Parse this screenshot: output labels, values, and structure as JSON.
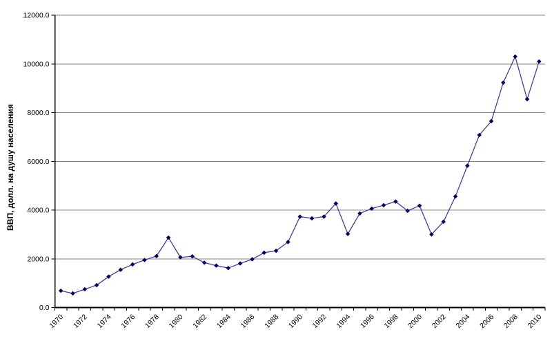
{
  "chart_data": {
    "type": "line",
    "title": "",
    "xlabel": "",
    "ylabel": "ВВП, долл. на душу населения",
    "legend": "none",
    "grid": "horizontal",
    "marker": "diamond",
    "ylim": [
      0,
      12000
    ],
    "y_ticks": [
      0,
      2000,
      4000,
      6000,
      8000,
      10000,
      12000
    ],
    "y_tick_labels": [
      "0.0",
      "2000.0",
      "4000.0",
      "6000.0",
      "8000.0",
      "10000.0",
      "12000.0"
    ],
    "x": [
      1970,
      1971,
      1972,
      1973,
      1974,
      1975,
      1976,
      1977,
      1978,
      1979,
      1980,
      1981,
      1982,
      1983,
      1984,
      1985,
      1986,
      1987,
      1988,
      1989,
      1990,
      1991,
      1992,
      1993,
      1994,
      1995,
      1996,
      1997,
      1998,
      1999,
      2000,
      2001,
      2002,
      2003,
      2004,
      2005,
      2006,
      2007,
      2008,
      2009,
      2010
    ],
    "x_tick_labels": [
      "1970",
      "1972",
      "1974",
      "1976",
      "1978",
      "1980",
      "1982",
      "1984",
      "1986",
      "1988",
      "1990",
      "1992",
      "1994",
      "1996",
      "1998",
      "2000",
      "2002",
      "2004",
      "2006",
      "2008",
      "2010"
    ],
    "values": [
      690,
      580,
      750,
      920,
      1270,
      1550,
      1770,
      1950,
      2110,
      2870,
      2060,
      2100,
      1840,
      1720,
      1620,
      1810,
      1980,
      2250,
      2330,
      2690,
      3730,
      3660,
      3730,
      4270,
      3020,
      3860,
      4060,
      4200,
      4350,
      3970,
      4180,
      3000,
      3520,
      4560,
      5820,
      7080,
      7650,
      9230,
      10300,
      8550,
      10100
    ],
    "colors": {
      "line": "#3f3f9f",
      "marker": "#000066",
      "gridline": "#878787",
      "axis": "#000000",
      "text": "#000000",
      "background": "#ffffff"
    }
  }
}
